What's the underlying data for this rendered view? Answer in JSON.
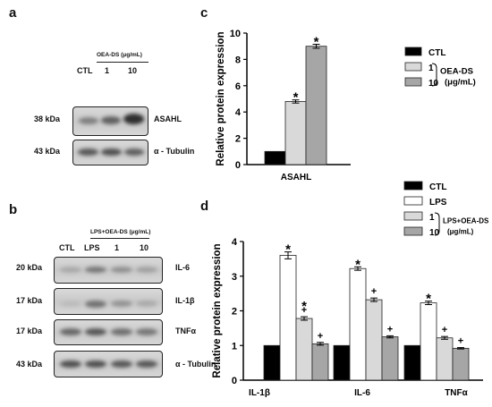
{
  "panels": {
    "a": {
      "letter": "a",
      "group_label": "OEA-DS (μg/mL)",
      "lanes": [
        "CTL",
        "1",
        "10"
      ],
      "blots": [
        {
          "size": "38 kDa",
          "protein": "ASAHL",
          "intensity": [
            0.45,
            0.65,
            0.9
          ]
        },
        {
          "size": "43 kDa",
          "protein": "α - Tubulin",
          "intensity": [
            0.7,
            0.75,
            0.65
          ]
        }
      ]
    },
    "b": {
      "letter": "b",
      "group_label": "LPS+OEA-DS (μg/mL)",
      "lanes": [
        "CTL",
        "LPS",
        "1",
        "10"
      ],
      "blots": [
        {
          "size": "20 kDa",
          "protein": "IL-6",
          "intensity": [
            0.2,
            0.5,
            0.35,
            0.25
          ]
        },
        {
          "size": "17 kDa",
          "protein": "IL-1β",
          "intensity": [
            0.1,
            0.55,
            0.35,
            0.2
          ]
        },
        {
          "size": "17 kDa",
          "protein": "TNFα",
          "intensity": [
            0.6,
            0.7,
            0.55,
            0.5
          ]
        },
        {
          "size": "43 kDa",
          "protein": "α - Tubulin",
          "intensity": [
            0.75,
            0.75,
            0.7,
            0.7
          ]
        }
      ]
    }
  },
  "chart_data": [
    {
      "panel": "c",
      "type": "bar",
      "ylabel": "Relative protein expression",
      "ylim": [
        0,
        10
      ],
      "yticks": [
        0,
        2,
        4,
        6,
        8,
        10
      ],
      "categories": [
        "ASAHL"
      ],
      "series": [
        {
          "name": "CTL",
          "values": [
            1.0
          ],
          "error": [
            0
          ],
          "marker": "",
          "color": "#000000"
        },
        {
          "name": "1",
          "values": [
            4.8
          ],
          "error": [
            0.12
          ],
          "marker": "*",
          "color": "#d9d9d9"
        },
        {
          "name": "10",
          "values": [
            9.0
          ],
          "error": [
            0.15
          ],
          "marker": "*",
          "color": "#a6a6a6"
        }
      ],
      "legend": {
        "group_label_line1": "OEA-DS",
        "group_label_line2": "(μg/mL)",
        "position": "right"
      }
    },
    {
      "panel": "d",
      "type": "bar",
      "ylabel": "Relative protein expression",
      "ylim": [
        0,
        4
      ],
      "yticks": [
        0,
        1,
        2,
        3,
        4
      ],
      "categories": [
        "IL-1β",
        "IL-6",
        "TNFα"
      ],
      "series": [
        {
          "name": "CTL",
          "values": [
            1.0,
            1.0,
            1.0
          ],
          "error": [
            0,
            0,
            0
          ],
          "marker": [
            "",
            "",
            ""
          ],
          "color": "#000000"
        },
        {
          "name": "LPS",
          "values": [
            3.6,
            3.22,
            2.23
          ],
          "error": [
            0.1,
            0.05,
            0.05
          ],
          "marker": [
            "*",
            "*",
            "*"
          ],
          "color": "#ffffff"
        },
        {
          "name": "1",
          "values": [
            1.78,
            2.32,
            1.22
          ],
          "error": [
            0.05,
            0.05,
            0.04
          ],
          "marker": [
            "*+",
            "+",
            "+"
          ],
          "color": "#d9d9d9"
        },
        {
          "name": "10",
          "values": [
            1.05,
            1.25,
            0.92
          ],
          "error": [
            0.04,
            0.03,
            0.02
          ],
          "marker": [
            "+",
            "+",
            "+"
          ],
          "color": "#a6a6a6"
        }
      ],
      "legend": {
        "group_label_line1": "LPS+OEA-DS",
        "group_label_line2": "(μg/mL)",
        "position": "top-right"
      }
    }
  ]
}
